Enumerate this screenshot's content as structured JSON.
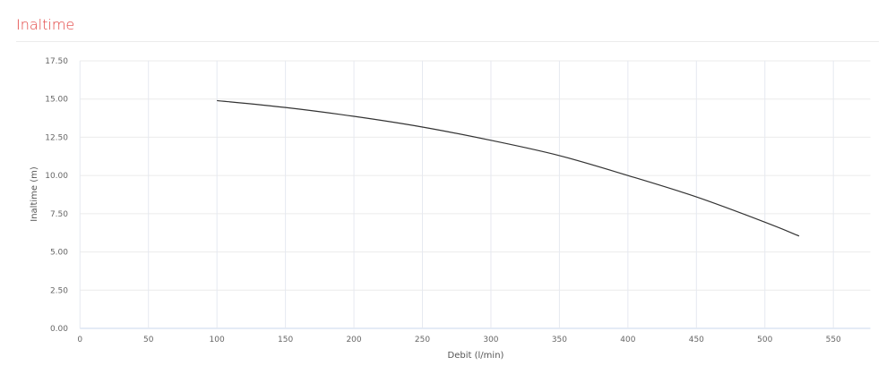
{
  "header": {
    "title": "Inaltime"
  },
  "chart_data": {
    "type": "line",
    "title": "",
    "xlabel": "Debit (l/min)",
    "ylabel": "Inaltime (m)",
    "xlim": [
      0,
      577
    ],
    "ylim": [
      0,
      17.5
    ],
    "xticks": [
      0,
      50,
      100,
      150,
      200,
      250,
      300,
      350,
      400,
      450,
      500,
      550
    ],
    "yticks": [
      "0.00",
      "2.50",
      "5.00",
      "7.50",
      "10.00",
      "12.50",
      "15.00",
      "17.50"
    ],
    "grid": true,
    "series": [
      {
        "color": "#333333",
        "x": [
          100,
          150,
          200,
          250,
          300,
          350,
          400,
          450,
          500,
          525
        ],
        "y": [
          14.9,
          14.45,
          13.87,
          13.17,
          12.3,
          11.3,
          10.0,
          8.6,
          6.95,
          6.04
        ]
      }
    ]
  }
}
